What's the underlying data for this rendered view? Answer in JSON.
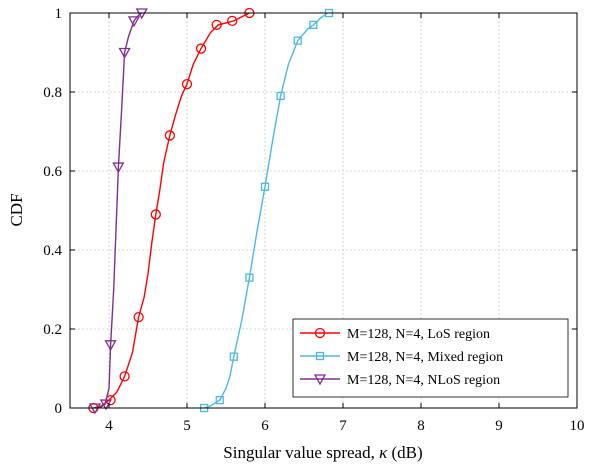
{
  "chart_data": {
    "type": "line",
    "xlabel_text": "Singular value spread, ",
    "xlabel_symbol": "κ",
    "xlabel_unit": " (dB)",
    "ylabel": "CDF",
    "xlim": [
      3.5,
      10
    ],
    "ylim": [
      0,
      1
    ],
    "x_ticks": [
      4,
      5,
      6,
      7,
      8,
      9,
      10
    ],
    "y_ticks": [
      0,
      0.2,
      0.4,
      0.6,
      0.8,
      1
    ],
    "y_tick_labels": [
      "0",
      "0.2",
      "0.4",
      "0.6",
      "0.8",
      "1"
    ],
    "grid": true,
    "legend_position": "bottom-right",
    "series": [
      {
        "name": "M=128, N=4, LoS region",
        "color": "#ff0000",
        "marker": "circle",
        "line": [
          [
            3.8,
            0
          ],
          [
            3.9,
            0.005
          ],
          [
            4.0,
            0.02
          ],
          [
            4.1,
            0.04
          ],
          [
            4.2,
            0.08
          ],
          [
            4.3,
            0.14
          ],
          [
            4.38,
            0.23
          ],
          [
            4.45,
            0.28
          ],
          [
            4.5,
            0.34
          ],
          [
            4.55,
            0.42
          ],
          [
            4.6,
            0.49
          ],
          [
            4.65,
            0.55
          ],
          [
            4.7,
            0.62
          ],
          [
            4.78,
            0.69
          ],
          [
            4.85,
            0.74
          ],
          [
            4.93,
            0.79
          ],
          [
            5.0,
            0.82
          ],
          [
            5.08,
            0.87
          ],
          [
            5.18,
            0.91
          ],
          [
            5.3,
            0.95
          ],
          [
            5.4,
            0.97
          ],
          [
            5.5,
            0.975
          ],
          [
            5.6,
            0.98
          ],
          [
            5.7,
            0.99
          ],
          [
            5.8,
            1.0
          ]
        ],
        "markers": [
          [
            3.8,
            0
          ],
          [
            4.02,
            0.02
          ],
          [
            4.2,
            0.08
          ],
          [
            4.38,
            0.23
          ],
          [
            4.6,
            0.49
          ],
          [
            4.78,
            0.69
          ],
          [
            5.0,
            0.82
          ],
          [
            5.18,
            0.91
          ],
          [
            5.38,
            0.97
          ],
          [
            5.58,
            0.98
          ],
          [
            5.8,
            1.0
          ]
        ]
      },
      {
        "name": "M=128, N=4, Mixed region",
        "color": "#4db8e8",
        "marker": "square",
        "line": [
          [
            5.22,
            0
          ],
          [
            5.3,
            0.005
          ],
          [
            5.42,
            0.02
          ],
          [
            5.5,
            0.05
          ],
          [
            5.55,
            0.08
          ],
          [
            5.6,
            0.13
          ],
          [
            5.7,
            0.22
          ],
          [
            5.8,
            0.33
          ],
          [
            5.9,
            0.45
          ],
          [
            6.0,
            0.56
          ],
          [
            6.1,
            0.68
          ],
          [
            6.2,
            0.79
          ],
          [
            6.3,
            0.87
          ],
          [
            6.42,
            0.93
          ],
          [
            6.55,
            0.96
          ],
          [
            6.62,
            0.97
          ],
          [
            6.7,
            0.985
          ],
          [
            6.8,
            1.0
          ]
        ],
        "markers": [
          [
            5.22,
            0
          ],
          [
            5.42,
            0.02
          ],
          [
            5.6,
            0.13
          ],
          [
            5.8,
            0.33
          ],
          [
            6.0,
            0.56
          ],
          [
            6.2,
            0.79
          ],
          [
            6.42,
            0.93
          ],
          [
            6.62,
            0.97
          ],
          [
            6.82,
            1.0
          ]
        ]
      },
      {
        "name": "M=128, N=4, NLoS region",
        "color": "#7e2f8e",
        "marker": "triangle-down",
        "line": [
          [
            3.82,
            0
          ],
          [
            3.9,
            0.003
          ],
          [
            3.95,
            0.01
          ],
          [
            4.0,
            0.05
          ],
          [
            4.02,
            0.16
          ],
          [
            4.06,
            0.3
          ],
          [
            4.12,
            0.61
          ],
          [
            4.16,
            0.75
          ],
          [
            4.2,
            0.9
          ],
          [
            4.25,
            0.94
          ],
          [
            4.32,
            0.98
          ],
          [
            4.38,
            0.995
          ],
          [
            4.42,
            1.0
          ]
        ],
        "markers": [
          [
            3.82,
            0
          ],
          [
            3.96,
            0.01
          ],
          [
            4.02,
            0.16
          ],
          [
            4.12,
            0.61
          ],
          [
            4.2,
            0.9
          ],
          [
            4.32,
            0.98
          ],
          [
            4.42,
            1.0
          ]
        ]
      }
    ]
  }
}
